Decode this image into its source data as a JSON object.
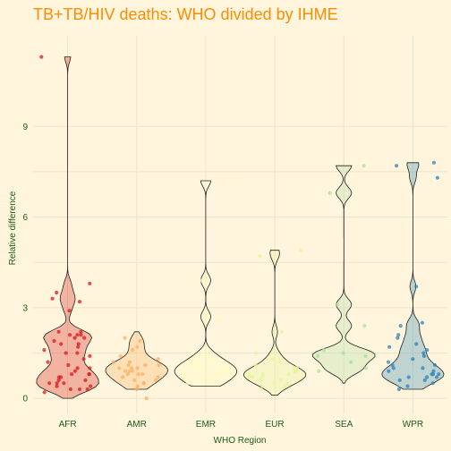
{
  "chart_data": {
    "type": "violin",
    "title": "TB+TB/HIV deaths: WHO divided by IHME",
    "xlabel": "WHO Region",
    "ylabel": "Relative difference",
    "categories": [
      "AFR",
      "AMR",
      "EMR",
      "EUR",
      "SEA",
      "WPR"
    ],
    "y_ticks": [
      0,
      3,
      6,
      9
    ],
    "ylim": [
      -0.5,
      12
    ],
    "grid": true,
    "colors": [
      "#d7191c",
      "#fdae61",
      "#ffffbf",
      "#e6f598",
      "#abdda4",
      "#2b83ba"
    ],
    "series": [
      {
        "category": "AFR",
        "violin_range": [
          0,
          11.3
        ],
        "points": [
          11.3,
          3.8,
          3.5,
          3.3,
          3.2,
          2.9,
          2.2,
          2.2,
          2.1,
          2.1,
          2.1,
          2.0,
          2.0,
          1.9,
          1.8,
          1.8,
          1.7,
          1.6,
          1.5,
          1.5,
          1.4,
          1.3,
          1.2,
          1.1,
          1.0,
          1.0,
          0.9,
          0.8,
          0.8,
          0.8,
          0.7,
          0.7,
          0.6,
          0.6,
          0.5,
          0.5,
          0.5,
          0.4,
          0.4,
          0.3,
          0.3,
          0.3,
          0.2
        ]
      },
      {
        "category": "AMR",
        "violin_range": [
          0.3,
          2.2
        ],
        "points": [
          2.0,
          1.9,
          1.7,
          1.6,
          1.4,
          1.3,
          1.2,
          1.2,
          1.1,
          1.1,
          1.1,
          1.0,
          1.0,
          1.0,
          0.9,
          0.9,
          0.9,
          0.8,
          0.8,
          0.8,
          0.7,
          0.7,
          0.6,
          0.6,
          0.5,
          0.5,
          0.4,
          0.3,
          0.0
        ]
      },
      {
        "category": "EMR",
        "violin_range": [
          0.4,
          7.2
        ],
        "points": [
          7.2,
          3.9,
          2.7,
          1.5,
          1.3,
          1.2,
          1.1,
          1.0,
          1.0,
          0.9,
          0.8,
          0.8,
          0.7,
          0.6,
          0.5,
          0.4
        ]
      },
      {
        "category": "EUR",
        "violin_range": [
          0.1,
          4.9
        ],
        "points": [
          4.9,
          4.7,
          2.2,
          1.5,
          1.3,
          1.2,
          1.1,
          1.0,
          1.0,
          0.9,
          0.9,
          0.9,
          0.8,
          0.8,
          0.8,
          0.7,
          0.7,
          0.7,
          0.6,
          0.6,
          0.5,
          0.5,
          0.4,
          0.3
        ]
      },
      {
        "category": "SEA",
        "violin_range": [
          0.5,
          7.7
        ],
        "points": [
          7.7,
          6.8,
          3.1,
          2.4,
          1.6,
          1.5,
          1.4,
          1.4,
          1.2,
          1.0,
          0.9
        ]
      },
      {
        "category": "WPR",
        "violin_range": [
          0.3,
          7.8
        ],
        "points": [
          7.8,
          7.7,
          7.3,
          3.7,
          2.5,
          2.4,
          2.1,
          2.0,
          1.8,
          1.7,
          1.6,
          1.5,
          1.4,
          1.3,
          1.2,
          1.1,
          1.1,
          1.0,
          1.0,
          0.9,
          0.9,
          0.8,
          0.8,
          0.8,
          0.7,
          0.7,
          0.7,
          0.6,
          0.6,
          0.5,
          0.4,
          0.3
        ]
      }
    ]
  }
}
